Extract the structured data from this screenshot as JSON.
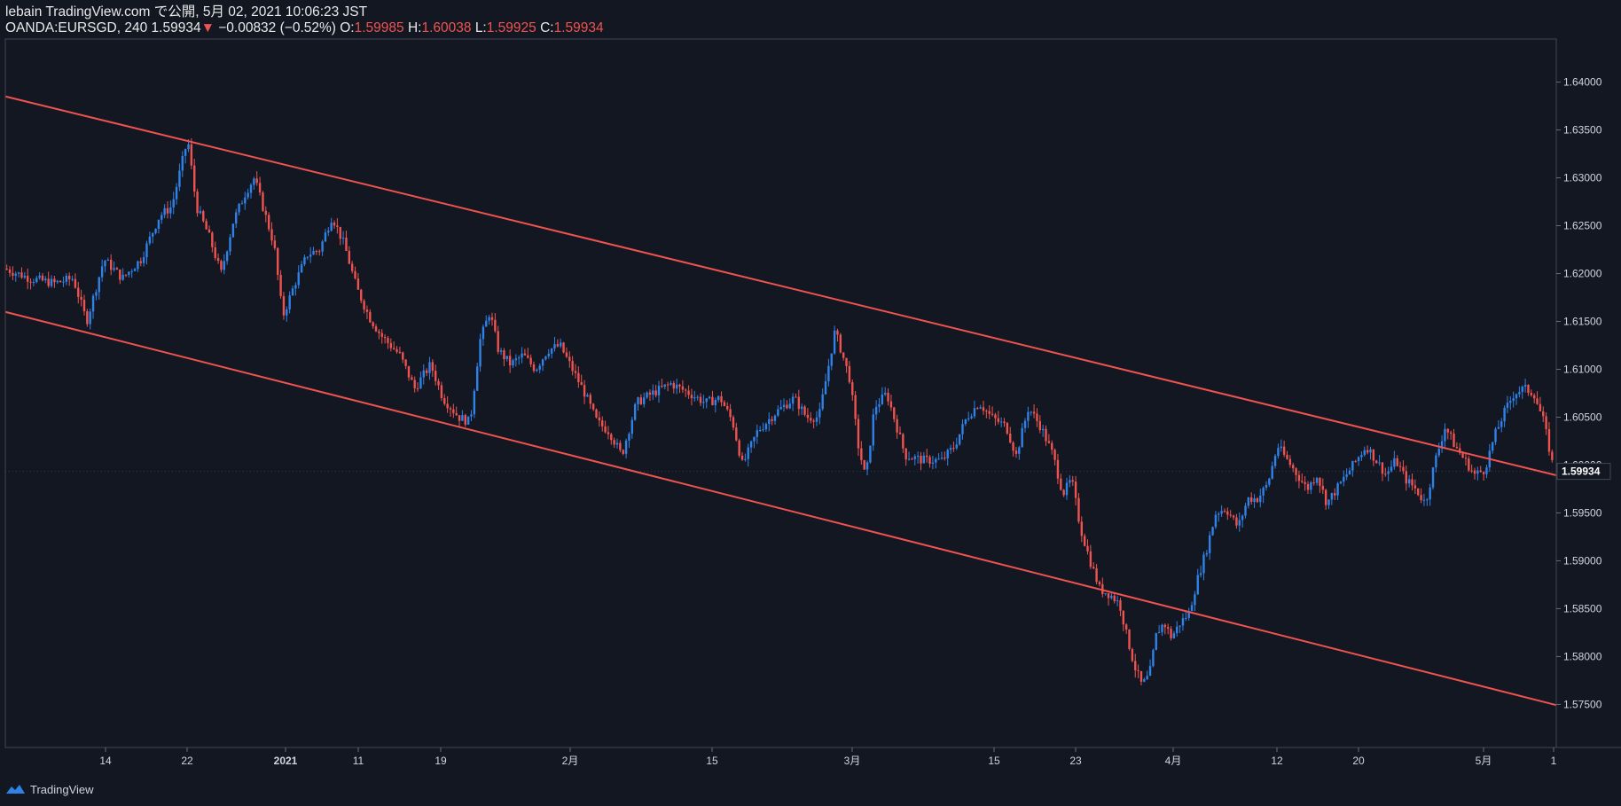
{
  "header": {
    "publish_line": "lebain TradingView.com で公開, 5月 02, 2021 10:06:23 JST",
    "symbol": "OANDA:EURSGD, 240",
    "last": "1.59934",
    "change_arrow": "▼",
    "change": "−0.00832 (−0.52%)",
    "o_label": "O:",
    "o_value": "1.59985",
    "h_label": "H:",
    "h_value": "1.60038",
    "l_label": "L:",
    "l_value": "1.59925",
    "c_label": "C:",
    "c_value": "1.59934"
  },
  "footer": {
    "brand": "TradingView",
    "logo_icon": "tradingview-logo-icon"
  },
  "colors": {
    "background": "#131722",
    "up": "#2f82e8",
    "down": "#ef5350",
    "trendline": "#ef5350",
    "axis": "#434651",
    "text": "#d1d4dc"
  },
  "chart_data": {
    "type": "candlestick",
    "symbol": "OANDA:EURSGD",
    "interval": "240",
    "last_price": 1.59934,
    "last_price_label": "1.59934",
    "ylim": [
      1.5705,
      1.6445
    ],
    "y_ticks": [
      1.575,
      1.58,
      1.585,
      1.59,
      1.595,
      1.6,
      1.605,
      1.61,
      1.615,
      1.62,
      1.625,
      1.63,
      1.635,
      1.64
    ],
    "y_tick_labels": [
      "1.57500",
      "1.58000",
      "1.58500",
      "1.59000",
      "1.59500",
      "1.60000",
      "1.60500",
      "1.61000",
      "1.61500",
      "1.62000",
      "1.62500",
      "1.63000",
      "1.63500",
      "1.64000"
    ],
    "x_ticks": [
      "14",
      "22",
      "2021",
      "11",
      "19",
      "2月",
      "15",
      "3月",
      "15",
      "23",
      "4月",
      "12",
      "20",
      "5月",
      "1"
    ],
    "price_path": [
      {
        "t": 0.0,
        "p": 1.6205
      },
      {
        "t": 0.02,
        "p": 1.6195
      },
      {
        "t": 0.04,
        "p": 1.619
      },
      {
        "t": 0.055,
        "p": 1.6195
      },
      {
        "t": 0.066,
        "p": 1.615
      },
      {
        "t": 0.08,
        "p": 1.6215
      },
      {
        "t": 0.095,
        "p": 1.6195
      },
      {
        "t": 0.11,
        "p": 1.6215
      },
      {
        "t": 0.125,
        "p": 1.626
      },
      {
        "t": 0.135,
        "p": 1.627
      },
      {
        "t": 0.145,
        "p": 1.6325
      },
      {
        "t": 0.148,
        "p": 1.634
      },
      {
        "t": 0.155,
        "p": 1.627
      },
      {
        "t": 0.165,
        "p": 1.624
      },
      {
        "t": 0.175,
        "p": 1.62
      },
      {
        "t": 0.185,
        "p": 1.6255
      },
      {
        "t": 0.195,
        "p": 1.6285
      },
      {
        "t": 0.202,
        "p": 1.63
      },
      {
        "t": 0.21,
        "p": 1.6265
      },
      {
        "t": 0.218,
        "p": 1.623
      },
      {
        "t": 0.225,
        "p": 1.6155
      },
      {
        "t": 0.235,
        "p": 1.619
      },
      {
        "t": 0.245,
        "p": 1.622
      },
      {
        "t": 0.255,
        "p": 1.6225
      },
      {
        "t": 0.265,
        "p": 1.626
      },
      {
        "t": 0.275,
        "p": 1.623
      },
      {
        "t": 0.285,
        "p": 1.6185
      },
      {
        "t": 0.295,
        "p": 1.6155
      },
      {
        "t": 0.305,
        "p": 1.6135
      },
      {
        "t": 0.32,
        "p": 1.6115
      },
      {
        "t": 0.332,
        "p": 1.608
      },
      {
        "t": 0.345,
        "p": 1.6105
      },
      {
        "t": 0.355,
        "p": 1.607
      },
      {
        "t": 0.368,
        "p": 1.605
      },
      {
        "t": 0.377,
        "p": 1.6045
      },
      {
        "t": 0.385,
        "p": 1.613
      },
      {
        "t": 0.393,
        "p": 1.616
      },
      {
        "t": 0.4,
        "p": 1.612
      },
      {
        "t": 0.41,
        "p": 1.6105
      },
      {
        "t": 0.42,
        "p": 1.6115
      },
      {
        "t": 0.43,
        "p": 1.61
      },
      {
        "t": 0.44,
        "p": 1.612
      },
      {
        "t": 0.45,
        "p": 1.6125
      },
      {
        "t": 0.46,
        "p": 1.61
      },
      {
        "t": 0.47,
        "p": 1.6075
      },
      {
        "t": 0.48,
        "p": 1.6045
      },
      {
        "t": 0.49,
        "p": 1.6035
      },
      {
        "t": 0.5,
        "p": 1.601
      },
      {
        "t": 0.512,
        "p": 1.6065
      },
      {
        "t": 0.525,
        "p": 1.6075
      },
      {
        "t": 0.54,
        "p": 1.6085
      },
      {
        "t": 0.555,
        "p": 1.6075
      },
      {
        "t": 0.568,
        "p": 1.6065
      },
      {
        "t": 0.58,
        "p": 1.607
      },
      {
        "t": 0.59,
        "p": 1.6045
      },
      {
        "t": 0.598,
        "p": 1.6
      },
      {
        "t": 0.61,
        "p": 1.6035
      },
      {
        "t": 0.625,
        "p": 1.6055
      },
      {
        "t": 0.64,
        "p": 1.607
      },
      {
        "t": 0.65,
        "p": 1.605
      },
      {
        "t": 0.66,
        "p": 1.605
      },
      {
        "t": 0.668,
        "p": 1.6105
      },
      {
        "t": 0.673,
        "p": 1.614
      },
      {
        "t": 0.678,
        "p": 1.612
      },
      {
        "t": 0.685,
        "p": 1.609
      },
      {
        "t": 0.692,
        "p": 1.602
      },
      {
        "t": 0.698,
        "p": 1.5985
      },
      {
        "t": 0.705,
        "p": 1.606
      },
      {
        "t": 0.715,
        "p": 1.6075
      },
      {
        "t": 0.722,
        "p": 1.6045
      },
      {
        "t": 0.73,
        "p": 1.601
      },
      {
        "t": 0.745,
        "p": 1.6005
      },
      {
        "t": 0.76,
        "p": 1.6005
      },
      {
        "t": 0.77,
        "p": 1.602
      },
      {
        "t": 0.78,
        "p": 1.605
      },
      {
        "t": 0.79,
        "p": 1.6065
      },
      {
        "t": 0.8,
        "p": 1.605
      },
      {
        "t": 0.812,
        "p": 1.604
      },
      {
        "t": 0.82,
        "p": 1.601
      },
      {
        "t": 0.83,
        "p": 1.606
      },
      {
        "t": 0.84,
        "p": 1.604
      },
      {
        "t": 0.85,
        "p": 1.601
      },
      {
        "t": 0.858,
        "p": 1.597
      },
      {
        "t": 0.865,
        "p": 1.5985
      },
      {
        "t": 0.872,
        "p": 1.5935
      },
      {
        "t": 0.88,
        "p": 1.59
      },
      {
        "t": 0.888,
        "p": 1.587
      },
      {
        "t": 0.896,
        "p": 1.5865
      },
      {
        "t": 0.904,
        "p": 1.5855
      },
      {
        "t": 0.91,
        "p": 1.582
      },
      {
        "t": 0.916,
        "p": 1.579
      },
      {
        "t": 0.922,
        "p": 1.577
      },
      {
        "t": 0.928,
        "p": 1.578
      },
      {
        "t": 0.934,
        "p": 1.5825
      },
      {
        "t": 0.94,
        "p": 1.5835
      },
      {
        "t": 0.946,
        "p": 1.582
      },
      {
        "t": 0.953,
        "p": 1.5835
      },
      {
        "t": 0.96,
        "p": 1.5845
      },
      {
        "t": 0.967,
        "p": 1.588
      },
      {
        "t": 0.974,
        "p": 1.591
      },
      {
        "t": 0.982,
        "p": 1.595
      },
      {
        "t": 0.99,
        "p": 1.5955
      },
      {
        "t": 1.0,
        "p": 1.5935
      },
      {
        "t": 1.008,
        "p": 1.5965
      },
      {
        "t": 1.016,
        "p": 1.5965
      },
      {
        "t": 1.024,
        "p": 1.598
      },
      {
        "t": 1.032,
        "p": 1.602
      },
      {
        "t": 1.04,
        "p": 1.6005
      },
      {
        "t": 1.048,
        "p": 1.599
      },
      {
        "t": 1.056,
        "p": 1.5975
      },
      {
        "t": 1.064,
        "p": 1.599
      },
      {
        "t": 1.072,
        "p": 1.596
      },
      {
        "t": 1.08,
        "p": 1.5975
      },
      {
        "t": 1.088,
        "p": 1.599
      },
      {
        "t": 1.096,
        "p": 1.6005
      },
      {
        "t": 1.104,
        "p": 1.602
      },
      {
        "t": 1.112,
        "p": 1.6005
      },
      {
        "t": 1.12,
        "p": 1.599
      },
      {
        "t": 1.128,
        "p": 1.6005
      },
      {
        "t": 1.136,
        "p": 1.5985
      },
      {
        "t": 1.144,
        "p": 1.5975
      },
      {
        "t": 1.152,
        "p": 1.596
      },
      {
        "t": 1.16,
        "p": 1.6005
      },
      {
        "t": 1.168,
        "p": 1.604
      },
      {
        "t": 1.176,
        "p": 1.602
      },
      {
        "t": 1.184,
        "p": 1.6005
      },
      {
        "t": 1.192,
        "p": 1.599
      },
      {
        "t": 1.2,
        "p": 1.5995
      },
      {
        "t": 1.208,
        "p": 1.603
      },
      {
        "t": 1.216,
        "p": 1.6055
      },
      {
        "t": 1.224,
        "p": 1.6075
      },
      {
        "t": 1.232,
        "p": 1.608
      },
      {
        "t": 1.24,
        "p": 1.6075
      },
      {
        "t": 1.248,
        "p": 1.6045
      },
      {
        "t": 1.256,
        "p": 1.5995
      }
    ],
    "channel": {
      "upper": [
        [
          0.0,
          1.6385
        ],
        [
          1.256,
          1.599
        ]
      ],
      "lower": [
        [
          0.0,
          1.616
        ],
        [
          1.256,
          1.575
        ]
      ]
    }
  }
}
